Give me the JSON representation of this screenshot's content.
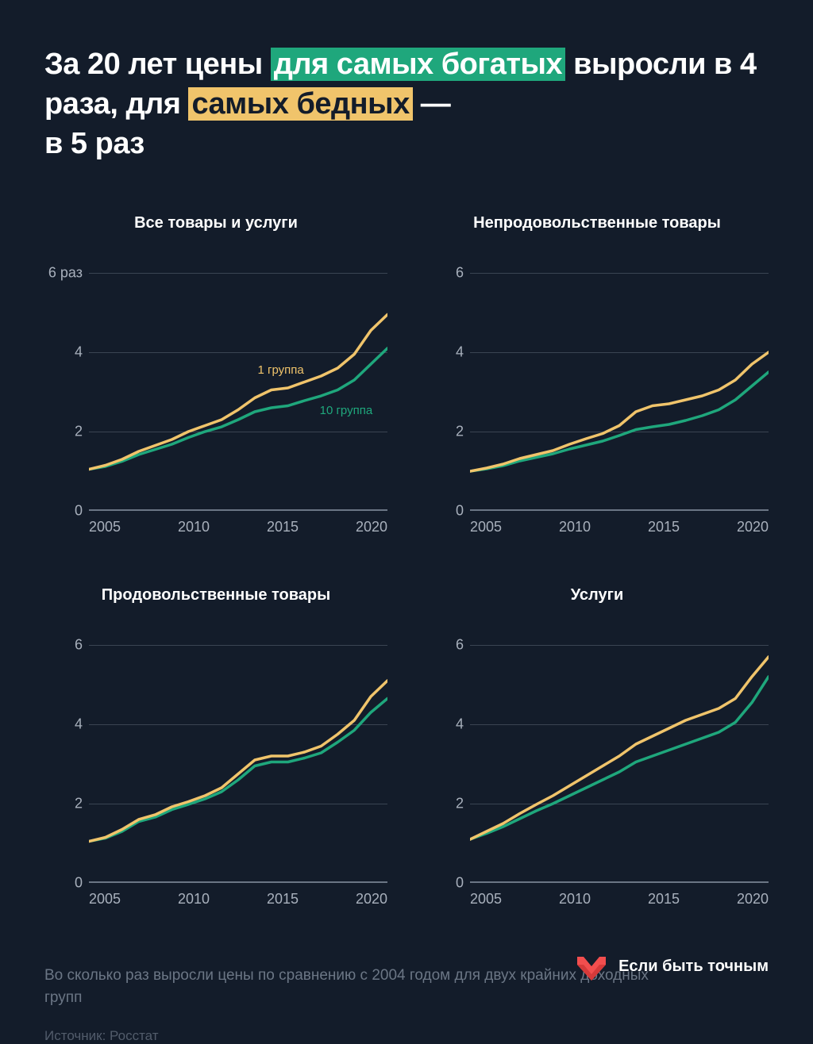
{
  "title": {
    "part1": "За 20 лет цены",
    "highlight_green": "для самых богатых",
    "part2": "выросли в 4 раза, для",
    "highlight_yellow": "самых бедных",
    "part3": "—",
    "part4": "в 5 раз",
    "fontsize": 38,
    "fontweight": 700
  },
  "colors": {
    "background": "#131c2a",
    "text": "#ffffff",
    "muted": "#6b7685",
    "tick": "#a8b0bc",
    "gridline": "#3a4452",
    "series_poor": "#f0c46b",
    "series_rich": "#1fa77c",
    "brand": "#f24e4e"
  },
  "chart_common": {
    "x_years": [
      2005,
      2006,
      2007,
      2008,
      2009,
      2010,
      2011,
      2012,
      2013,
      2014,
      2015,
      2016,
      2017,
      2018,
      2019,
      2020,
      2021,
      2022,
      2023
    ],
    "x_ticks": [
      2005,
      2010,
      2015,
      2020
    ],
    "xlim": [
      2005,
      2023
    ],
    "line_width": 3.5,
    "title_fontsize": 20,
    "tick_fontsize": 18,
    "series_label_fontsize": 15
  },
  "series_labels": {
    "poor": "1 группа",
    "rich": "10 группа"
  },
  "charts": [
    {
      "id": "all",
      "title": "Все товары и услуги",
      "ylim": [
        0,
        6
      ],
      "y_ticks": [
        0,
        2,
        4,
        6
      ],
      "y_tick_labels": [
        "0",
        "2",
        "4",
        "6 раз"
      ],
      "show_series_labels": true,
      "series_poor": [
        1.05,
        1.15,
        1.3,
        1.5,
        1.65,
        1.8,
        2.0,
        2.15,
        2.3,
        2.55,
        2.85,
        3.05,
        3.1,
        3.25,
        3.4,
        3.6,
        3.95,
        4.55,
        4.95
      ],
      "series_rich": [
        1.05,
        1.12,
        1.25,
        1.42,
        1.55,
        1.68,
        1.85,
        2.0,
        2.12,
        2.3,
        2.5,
        2.6,
        2.65,
        2.78,
        2.9,
        3.05,
        3.3,
        3.7,
        4.1
      ]
    },
    {
      "id": "nonfood",
      "title": "Непродовольственные товары",
      "ylim": [
        0,
        6
      ],
      "y_ticks": [
        0,
        2,
        4,
        6
      ],
      "y_tick_labels": [
        "0",
        "2",
        "4",
        "6"
      ],
      "show_series_labels": false,
      "series_poor": [
        1.0,
        1.08,
        1.18,
        1.32,
        1.42,
        1.52,
        1.68,
        1.82,
        1.95,
        2.15,
        2.5,
        2.65,
        2.7,
        2.8,
        2.9,
        3.05,
        3.3,
        3.7,
        4.0
      ],
      "series_rich": [
        1.0,
        1.06,
        1.14,
        1.26,
        1.35,
        1.44,
        1.56,
        1.66,
        1.76,
        1.9,
        2.05,
        2.12,
        2.18,
        2.28,
        2.4,
        2.55,
        2.8,
        3.15,
        3.5
      ]
    },
    {
      "id": "food",
      "title": "Продовольственные товары",
      "ylim": [
        0,
        6
      ],
      "y_ticks": [
        0,
        2,
        4,
        6
      ],
      "y_tick_labels": [
        "0",
        "2",
        "4",
        "6"
      ],
      "show_series_labels": false,
      "series_poor": [
        1.05,
        1.15,
        1.35,
        1.6,
        1.72,
        1.92,
        2.05,
        2.2,
        2.4,
        2.75,
        3.1,
        3.2,
        3.2,
        3.3,
        3.45,
        3.75,
        4.1,
        4.7,
        5.1
      ],
      "series_rich": [
        1.05,
        1.13,
        1.3,
        1.55,
        1.66,
        1.85,
        1.98,
        2.12,
        2.3,
        2.6,
        2.95,
        3.05,
        3.05,
        3.15,
        3.28,
        3.55,
        3.85,
        4.3,
        4.65
      ]
    },
    {
      "id": "services",
      "title": "Услуги",
      "ylim": [
        0,
        6
      ],
      "y_ticks": [
        0,
        2,
        4,
        6
      ],
      "y_tick_labels": [
        "0",
        "2",
        "4",
        "6"
      ],
      "show_series_labels": false,
      "series_poor": [
        1.1,
        1.3,
        1.5,
        1.75,
        1.98,
        2.2,
        2.45,
        2.7,
        2.95,
        3.2,
        3.5,
        3.7,
        3.9,
        4.1,
        4.25,
        4.4,
        4.65,
        5.2,
        5.7
      ],
      "series_rich": [
        1.1,
        1.25,
        1.42,
        1.62,
        1.82,
        2.0,
        2.2,
        2.4,
        2.6,
        2.8,
        3.05,
        3.2,
        3.35,
        3.5,
        3.65,
        3.8,
        4.05,
        4.55,
        5.2
      ]
    }
  ],
  "footnote": "Во сколько раз выросли цены по сравнению с 2004 годом для двух крайних доходных групп",
  "source": "Источник: Росстат",
  "brand": "Если быть точным"
}
